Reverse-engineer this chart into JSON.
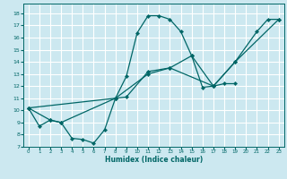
{
  "xlabel": "Humidex (Indice chaleur)",
  "bg_color": "#cce8f0",
  "grid_color": "#ffffff",
  "line_color": "#006666",
  "xlim": [
    -0.5,
    23.5
  ],
  "ylim": [
    7,
    18.8
  ],
  "yticks": [
    7,
    8,
    9,
    10,
    11,
    12,
    13,
    14,
    15,
    16,
    17,
    18
  ],
  "xticks": [
    0,
    1,
    2,
    3,
    4,
    5,
    6,
    7,
    8,
    9,
    10,
    11,
    12,
    13,
    14,
    15,
    16,
    17,
    18,
    19,
    20,
    21,
    22,
    23
  ],
  "line1_x": [
    0,
    1,
    2,
    3,
    4,
    5,
    6,
    7,
    8,
    9,
    10,
    11,
    12,
    13,
    14,
    15,
    16,
    17,
    18,
    19
  ],
  "line1_y": [
    10.2,
    8.7,
    9.2,
    9.0,
    7.7,
    7.6,
    7.3,
    8.4,
    11.0,
    12.8,
    16.4,
    17.8,
    17.8,
    17.5,
    16.5,
    14.5,
    11.9,
    12.0,
    12.2,
    12.2
  ],
  "line2_x": [
    0,
    2,
    3,
    8,
    9,
    11,
    13,
    15,
    17,
    19,
    21,
    22,
    23
  ],
  "line2_y": [
    10.2,
    9.2,
    9.0,
    11.0,
    11.1,
    13.2,
    13.5,
    14.5,
    12.0,
    14.0,
    16.5,
    17.5,
    17.5
  ],
  "line3_x": [
    0,
    8,
    11,
    13,
    17,
    19,
    23
  ],
  "line3_y": [
    10.2,
    11.0,
    13.0,
    13.5,
    12.0,
    14.0,
    17.5
  ]
}
